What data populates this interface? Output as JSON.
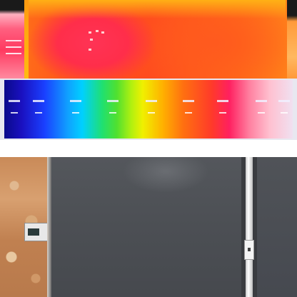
{
  "thermal_view": {
    "palette": "iron-rainbow",
    "hotspot_color": "#ff3355",
    "background_color": "#ff5a1a"
  },
  "palette_bar": {
    "tick_count": 9
  },
  "visual_photo": {
    "subject": "dark-panel-with-white-pipe",
    "panel_color": "#4a4d52",
    "wall_color": "#c98a58"
  }
}
